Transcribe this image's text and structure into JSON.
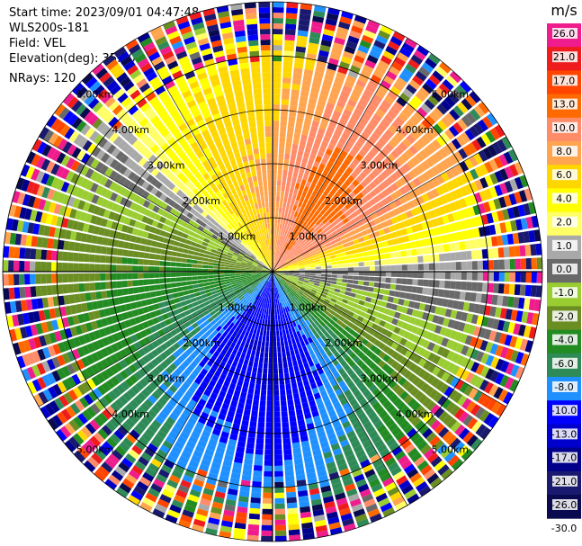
{
  "meta": {
    "start_time": "Start time: 2023/09/01 04:47:48",
    "instrument": "WLS200s-181",
    "field": "Field: VEL",
    "elevation": "Elevation(deg): 35.30",
    "nrays": "NRays: 120"
  },
  "colorbar": {
    "unit": "m/s",
    "ticks": [
      "26.0",
      "21.0",
      "17.0",
      "13.0",
      "10.0",
      "8.0",
      "6.0",
      "4.0",
      "2.0",
      "1.0",
      "0.0",
      "-1.0",
      "-2.0",
      "-4.0",
      "-6.0",
      "-8.0",
      "-10.0",
      "-13.0",
      "-17.0",
      "-21.0",
      "-26.0",
      "-30.0"
    ],
    "colors": [
      "#ee1c8c",
      "#ee1c1c",
      "#ff4500",
      "#ff6a00",
      "#ff8c69",
      "#ffa54f",
      "#ffd700",
      "#ffff00",
      "#ffff66",
      "#a9a9a9",
      "#696969",
      "#9acd32",
      "#6b8e23",
      "#228b22",
      "#2e8b57",
      "#1e90ff",
      "#0000ff",
      "#0000cd",
      "#00008b",
      "#191970",
      "#0a0a50"
    ]
  },
  "chart_data": {
    "type": "ppi",
    "field": "VEL",
    "units": "m/s",
    "nrays": 120,
    "elevation_deg": 35.3,
    "range_rings_km": [
      1.0,
      2.0,
      3.0,
      4.0,
      5.0
    ],
    "ring_label_text": [
      "1.00km",
      "2.00km",
      "3.00km",
      "4.00km",
      "5.00km"
    ],
    "vmin": -30.0,
    "vmax": 26.0,
    "max_range_km": 5.0,
    "sectors": [
      {
        "azimuth_deg": 0,
        "velocity_ms": 6.0
      },
      {
        "azimuth_deg": 30,
        "velocity_ms": 10.0
      },
      {
        "azimuth_deg": 60,
        "velocity_ms": 8.0
      },
      {
        "azimuth_deg": 90,
        "velocity_ms": 0.0
      },
      {
        "azimuth_deg": 120,
        "velocity_ms": -2.0
      },
      {
        "azimuth_deg": 150,
        "velocity_ms": -8.0
      },
      {
        "azimuth_deg": 180,
        "velocity_ms": -12.0
      },
      {
        "azimuth_deg": 210,
        "velocity_ms": -10.0
      },
      {
        "azimuth_deg": 240,
        "velocity_ms": -6.0
      },
      {
        "azimuth_deg": 270,
        "velocity_ms": -4.0
      },
      {
        "azimuth_deg": 300,
        "velocity_ms": -1.0
      },
      {
        "azimuth_deg": 330,
        "velocity_ms": 4.0
      }
    ],
    "far_range_note": "noisy multicolored returns beyond ~4.3 km"
  }
}
